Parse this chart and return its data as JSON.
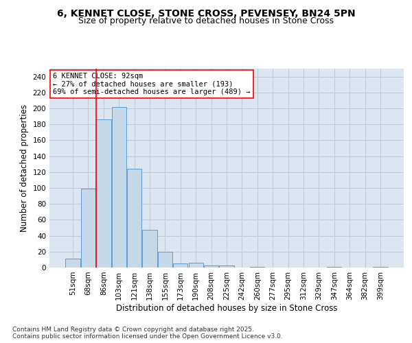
{
  "title_line1": "6, KENNET CLOSE, STONE CROSS, PEVENSEY, BN24 5PN",
  "title_line2": "Size of property relative to detached houses in Stone Cross",
  "xlabel": "Distribution of detached houses by size in Stone Cross",
  "ylabel": "Number of detached properties",
  "categories": [
    "51sqm",
    "68sqm",
    "86sqm",
    "103sqm",
    "121sqm",
    "138sqm",
    "155sqm",
    "173sqm",
    "190sqm",
    "208sqm",
    "225sqm",
    "242sqm",
    "260sqm",
    "277sqm",
    "295sqm",
    "312sqm",
    "329sqm",
    "347sqm",
    "364sqm",
    "382sqm",
    "399sqm"
  ],
  "values": [
    11,
    99,
    186,
    202,
    124,
    47,
    20,
    5,
    6,
    3,
    3,
    0,
    1,
    0,
    0,
    0,
    0,
    1,
    0,
    0,
    1
  ],
  "bar_color": "#c5d8e8",
  "bar_edge_color": "#5b9bd5",
  "grid_color": "#c0c8d8",
  "background_color": "#dce6f0",
  "annotation_line1": "6 KENNET CLOSE: 92sqm",
  "annotation_line2": "← 27% of detached houses are smaller (193)",
  "annotation_line3": "69% of semi-detached houses are larger (489) →",
  "redline_bin_index": 2,
  "ylim": [
    0,
    250
  ],
  "yticks": [
    0,
    20,
    40,
    60,
    80,
    100,
    120,
    140,
    160,
    180,
    200,
    220,
    240
  ],
  "footnote_line1": "Contains HM Land Registry data © Crown copyright and database right 2025.",
  "footnote_line2": "Contains public sector information licensed under the Open Government Licence v3.0.",
  "title_fontsize": 10,
  "subtitle_fontsize": 9,
  "axis_label_fontsize": 8.5,
  "tick_fontsize": 7.5,
  "annotation_fontsize": 7.5,
  "footnote_fontsize": 6.5
}
